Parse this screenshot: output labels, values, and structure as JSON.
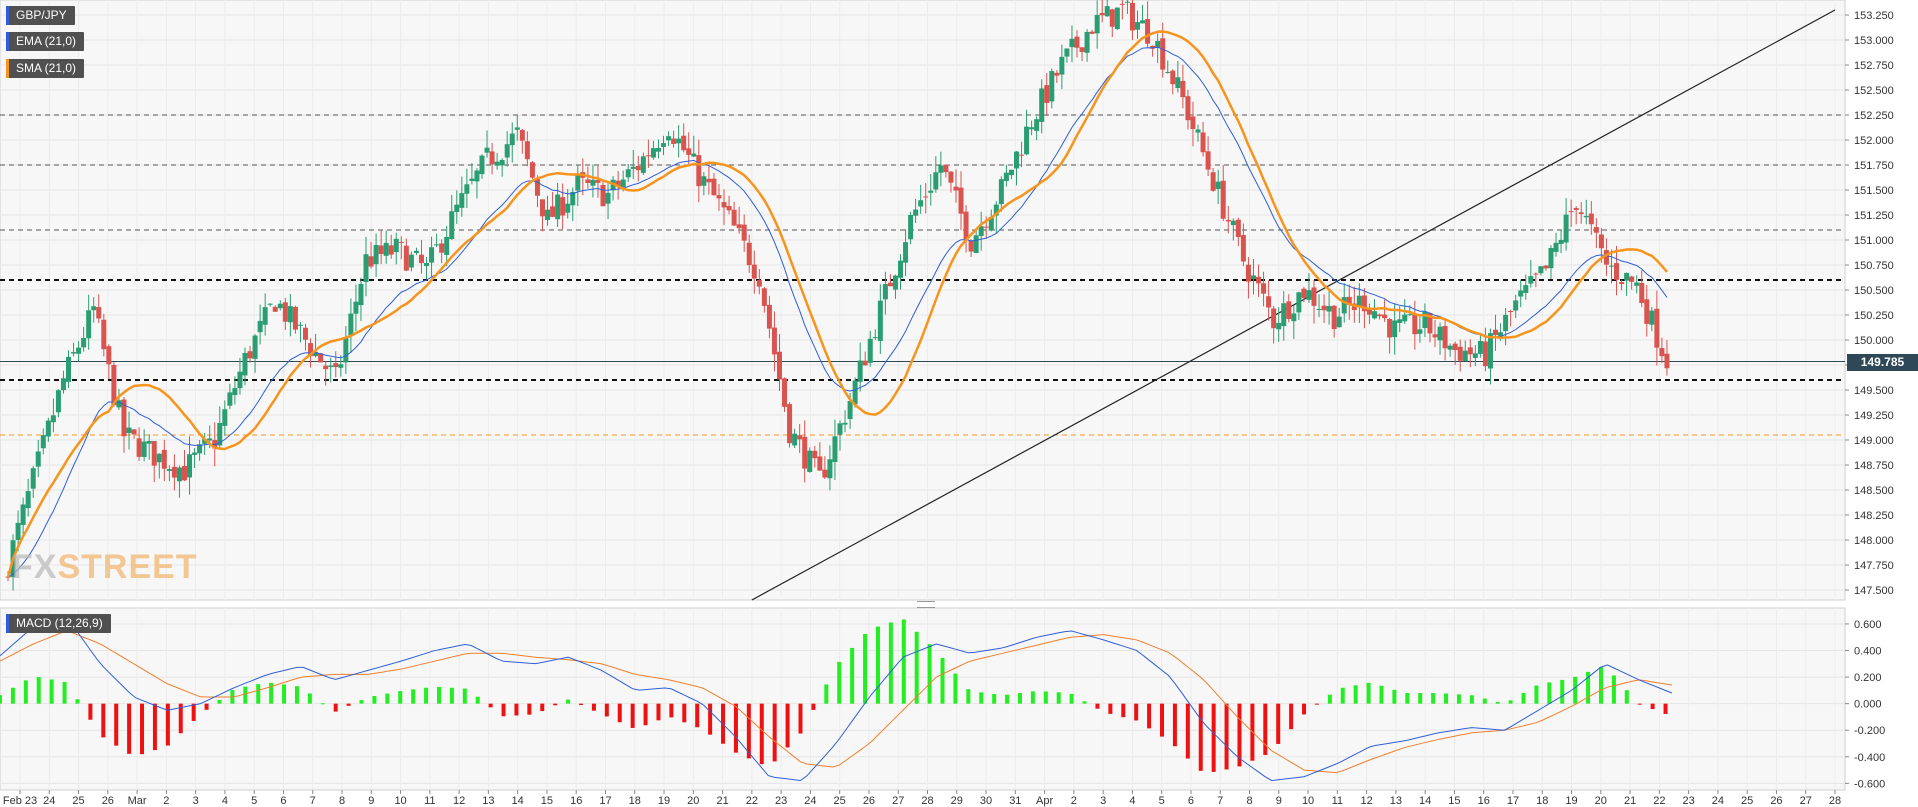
{
  "instrument": "GBP/JPY",
  "legends": {
    "pair": "GBP/JPY",
    "ema": "EMA (21,0)",
    "sma": "SMA (21,0)",
    "macd": "MACD (12,26,9)"
  },
  "current_price_label": "149.785",
  "watermark": {
    "fx": "FX",
    "street": "STREET"
  },
  "colors": {
    "bull": "#2a9d72",
    "bear": "#d9534f",
    "ema": "#2f5fd6",
    "sma": "#f7941d",
    "macd_pos": "#22ee22",
    "macd_neg": "#ee1111",
    "macd_line": "#2f5fd6",
    "signal_line": "#f07f2d"
  },
  "chart_data": [
    {
      "type": "candlestick",
      "title": "GBP/JPY",
      "ylim": [
        147.4,
        153.4
      ],
      "y_ticks": [
        "147.500",
        "147.750",
        "148.000",
        "148.250",
        "148.500",
        "148.750",
        "149.000",
        "149.250",
        "149.500",
        "149.750",
        "150.000",
        "150.250",
        "150.500",
        "150.750",
        "151.000",
        "151.250",
        "151.500",
        "151.750",
        "152.000",
        "152.250",
        "152.500",
        "152.750",
        "153.000",
        "153.250"
      ],
      "x_ticks": [
        "Feb 23",
        "24",
        "25",
        "26",
        "Mar",
        "2",
        "3",
        "4",
        "5",
        "6",
        "7",
        "8",
        "9",
        "10",
        "11",
        "12",
        "13",
        "14",
        "15",
        "16",
        "17",
        "18",
        "19",
        "20",
        "21",
        "22",
        "23",
        "24",
        "25",
        "26",
        "27",
        "28",
        "29",
        "30",
        "31",
        "Apr",
        "2",
        "3",
        "4",
        "5",
        "6",
        "7",
        "8",
        "9",
        "10",
        "11",
        "12",
        "13",
        "14",
        "15",
        "16",
        "17",
        "18",
        "19",
        "20",
        "21",
        "22",
        "23",
        "24",
        "25",
        "26",
        "27",
        "28"
      ],
      "anchors": [
        147.6,
        148.6,
        149.6,
        150.3,
        149.05,
        148.85,
        148.7,
        149.0,
        149.8,
        150.4,
        150.0,
        149.6,
        150.8,
        150.9,
        150.7,
        151.3,
        151.8,
        152.05,
        151.2,
        151.55,
        151.45,
        151.75,
        152.15,
        151.65,
        151.2,
        150.65,
        149.1,
        148.6,
        149.4,
        150.3,
        151.2,
        151.75,
        151.0,
        151.5,
        152.2,
        152.75,
        153.15,
        153.3,
        153.05,
        152.4,
        151.6,
        150.8,
        150.2,
        150.5,
        150.25,
        150.4,
        150.1,
        150.15,
        149.9,
        149.85,
        150.35,
        150.7,
        151.4,
        150.75,
        150.55,
        149.8
      ],
      "reference_lines": [
        {
          "name": "resistance-152.25",
          "value": 152.25,
          "style": "dashed",
          "color": "#555555"
        },
        {
          "name": "resistance-151.75",
          "value": 151.75,
          "style": "dashed",
          "color": "#555555"
        },
        {
          "name": "resistance-151.10",
          "value": 151.1,
          "style": "dashed",
          "color": "#555555"
        },
        {
          "name": "support-150.60",
          "value": 150.6,
          "style": "dashed-bold",
          "color": "#111111"
        },
        {
          "name": "support-149.60",
          "value": 149.6,
          "style": "dashed-bold",
          "color": "#111111"
        },
        {
          "name": "support-149.05",
          "value": 149.05,
          "style": "dashed",
          "color": "#f7941d"
        },
        {
          "name": "current-149.785",
          "value": 149.785,
          "style": "solid",
          "color": "#2f4858"
        }
      ],
      "trendline": {
        "from": {
          "date": "Mar 22",
          "value": 147.4
        },
        "to": {
          "date": "Apr 28",
          "value": 153.3
        }
      },
      "series": [
        {
          "name": "EMA (21,0)"
        },
        {
          "name": "SMA (21,0)"
        }
      ]
    },
    {
      "type": "macd",
      "title": "MACD (12,26,9)",
      "ylim": [
        -0.65,
        0.72
      ],
      "y_ticks": [
        "0.600",
        "0.400",
        "0.200",
        "0.000",
        "-0.200",
        "-0.400",
        "-0.600"
      ],
      "macd_anchors": [
        0.36,
        0.58,
        0.65,
        0.3,
        0.05,
        -0.05,
        0.0,
        0.12,
        0.22,
        0.28,
        0.18,
        0.25,
        0.32,
        0.4,
        0.45,
        0.32,
        0.3,
        0.35,
        0.25,
        0.1,
        0.12,
        0.0,
        -0.25,
        -0.55,
        -0.58,
        -0.3,
        0.05,
        0.35,
        0.45,
        0.38,
        0.42,
        0.5,
        0.55,
        0.48,
        0.4,
        0.2,
        -0.15,
        -0.4,
        -0.58,
        -0.55,
        -0.45,
        -0.32,
        -0.28,
        -0.22,
        -0.18,
        -0.2,
        -0.05,
        0.1,
        0.3,
        0.18,
        0.08
      ],
      "signal_anchors": [
        0.32,
        0.45,
        0.55,
        0.45,
        0.3,
        0.15,
        0.05,
        0.05,
        0.12,
        0.2,
        0.22,
        0.22,
        0.26,
        0.32,
        0.38,
        0.38,
        0.35,
        0.33,
        0.3,
        0.22,
        0.18,
        0.12,
        -0.02,
        -0.25,
        -0.45,
        -0.48,
        -0.3,
        -0.05,
        0.2,
        0.32,
        0.38,
        0.44,
        0.5,
        0.52,
        0.48,
        0.38,
        0.18,
        -0.1,
        -0.35,
        -0.5,
        -0.52,
        -0.42,
        -0.33,
        -0.27,
        -0.22,
        -0.2,
        -0.14,
        -0.02,
        0.12,
        0.18,
        0.14
      ]
    }
  ]
}
